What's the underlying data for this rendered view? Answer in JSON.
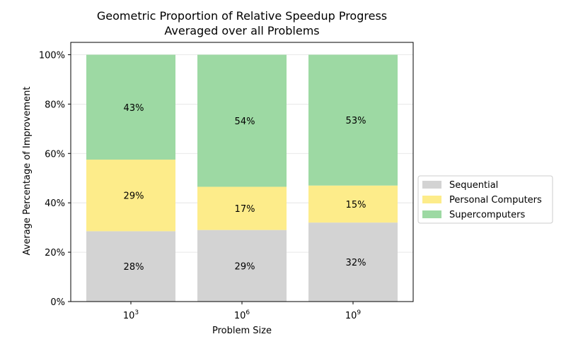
{
  "chart_data": {
    "type": "bar",
    "stacked": true,
    "title_lines": [
      "Geometric Proportion of Relative Speedup Progress",
      "Averaged over all Problems"
    ],
    "xlabel": "Problem Size",
    "ylabel": "Average Percentage of Improvement",
    "categories": [
      {
        "base": "10",
        "exp": "3"
      },
      {
        "base": "10",
        "exp": "6"
      },
      {
        "base": "10",
        "exp": "9"
      }
    ],
    "y_ticks": [
      {
        "value": 0,
        "label": "0%"
      },
      {
        "value": 20,
        "label": "20%"
      },
      {
        "value": 40,
        "label": "40%"
      },
      {
        "value": 60,
        "label": "60%"
      },
      {
        "value": 80,
        "label": "80%"
      },
      {
        "value": 100,
        "label": "100%"
      }
    ],
    "ylim": [
      0,
      105
    ],
    "grid": "horizontal",
    "legend_position": "right",
    "series": [
      {
        "name": "Sequential",
        "color": "#d3d3d3",
        "values": [
          28.5,
          29,
          32
        ],
        "labels": [
          "28%",
          "29%",
          "32%"
        ]
      },
      {
        "name": "Personal Computers",
        "color": "#fdec8a",
        "values": [
          29,
          17.5,
          15
        ],
        "labels": [
          "29%",
          "17%",
          "15%"
        ]
      },
      {
        "name": "Supercomputers",
        "color": "#9dd9a3",
        "values": [
          42.5,
          53.5,
          53
        ],
        "labels": [
          "43%",
          "54%",
          "53%"
        ]
      }
    ]
  }
}
